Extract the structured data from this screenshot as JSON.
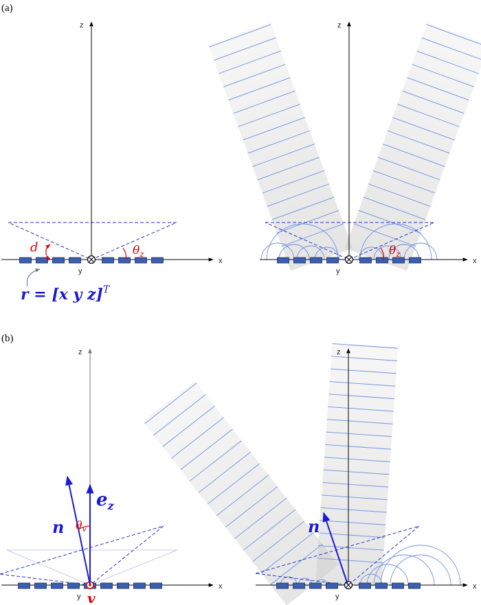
{
  "panels": {
    "a": {
      "label": "(a)"
    },
    "b": {
      "label": "(b)"
    }
  },
  "axes": {
    "x": "x",
    "y": "y",
    "z": "z"
  },
  "annotations": {
    "d": "d",
    "theta_z": "θ",
    "theta_z_sub": "z",
    "theta_v": "θ",
    "theta_v_sub": "v",
    "r_formula": "r = [x y z]",
    "r_formula_sup": "T",
    "n": "n",
    "e": "e",
    "e_sub": "z",
    "v": "v"
  },
  "colors": {
    "element_fill": "#3a5fb0",
    "element_stroke": "#1a2a55",
    "dashed_blue": "#2233cc",
    "wave_line": "#6f8fe0",
    "beam_fill": "#cfcfcf",
    "red": "#e00000",
    "vector_blue": "#1a1ad6"
  },
  "array": {
    "elements_per_side": 4
  }
}
